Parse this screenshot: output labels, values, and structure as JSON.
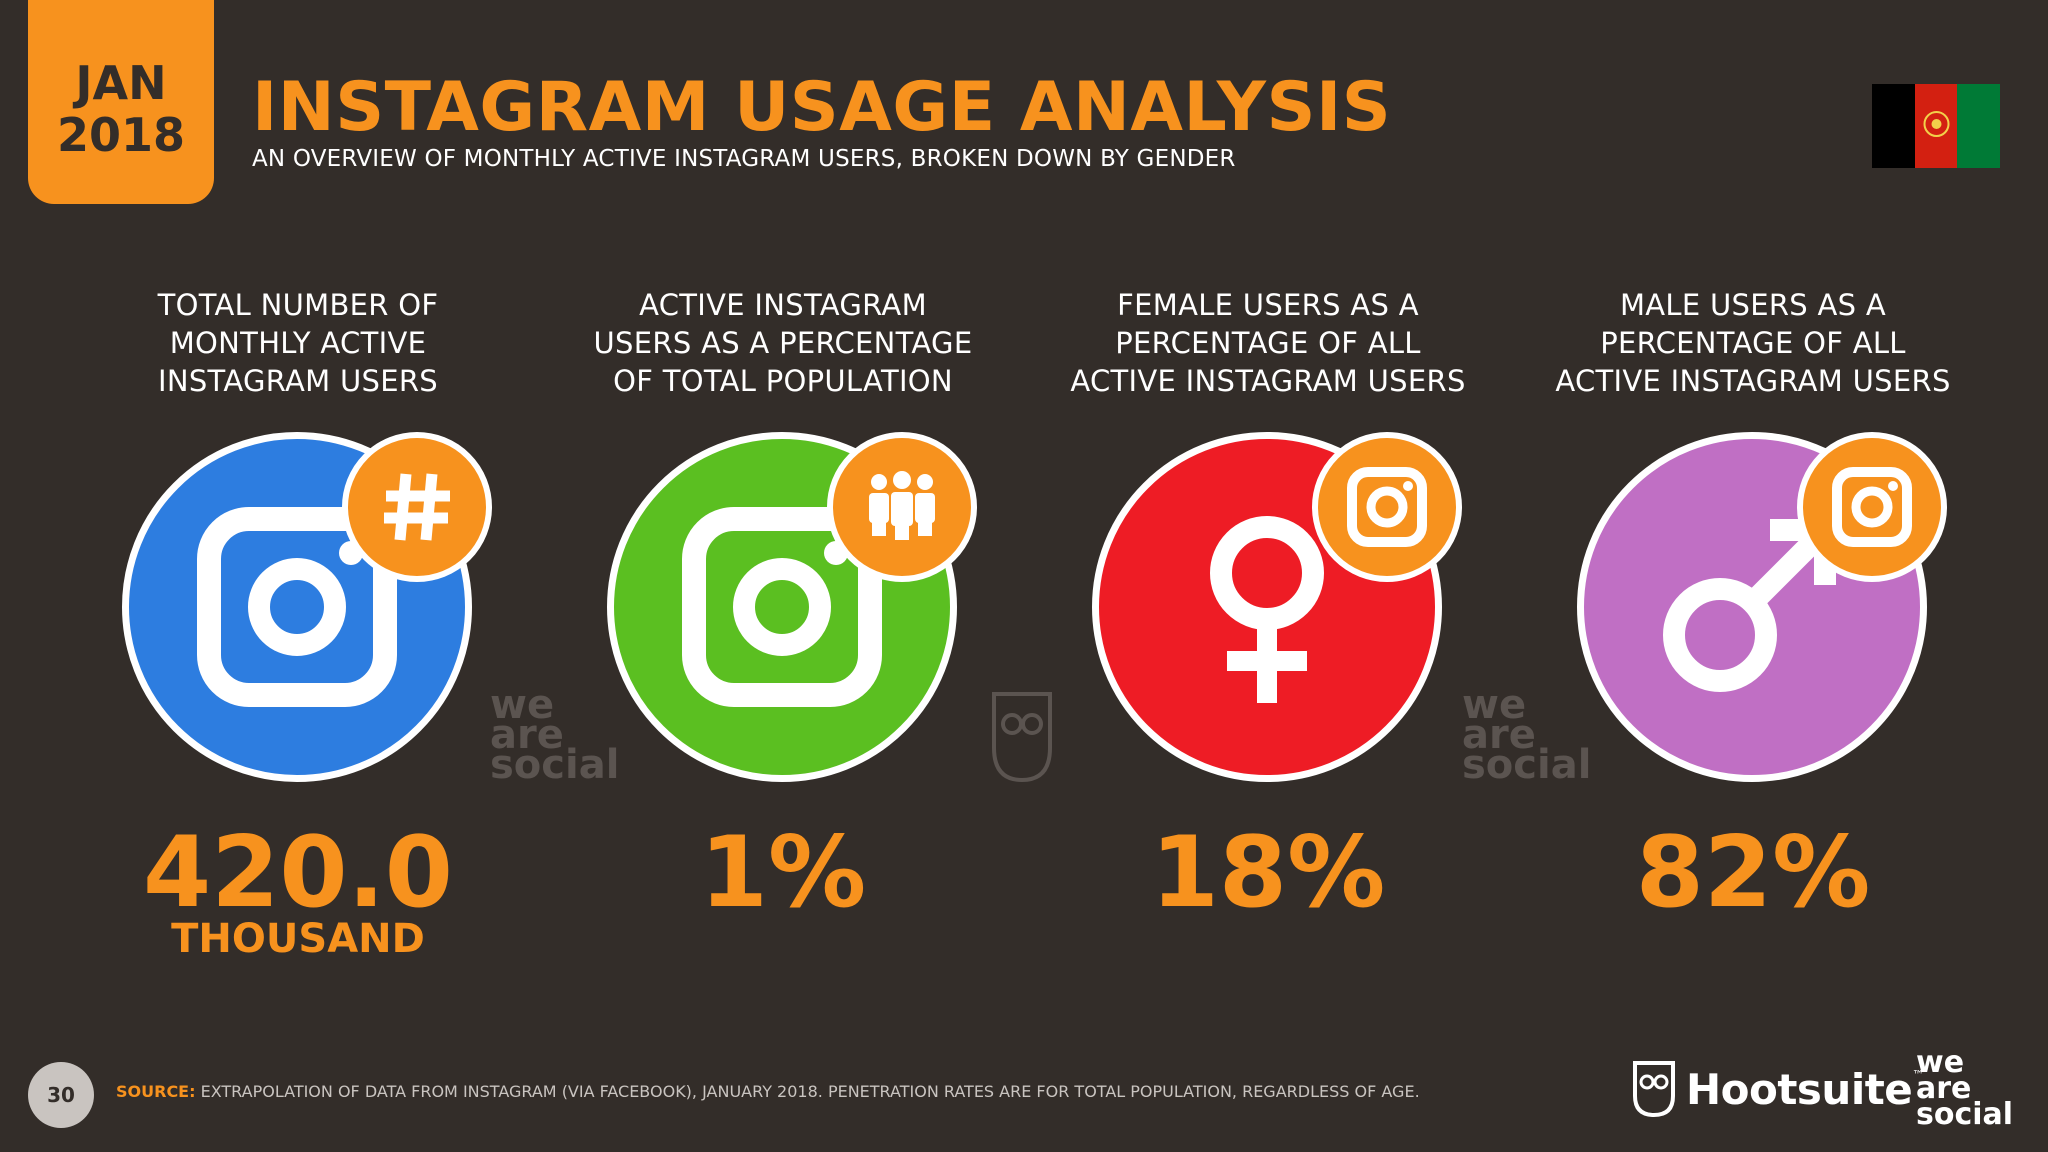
{
  "header": {
    "date_month": "JAN",
    "date_year": "2018",
    "title": "INSTAGRAM USAGE ANALYSIS",
    "subtitle": "AN OVERVIEW OF MONTHLY ACTIVE INSTAGRAM USERS, BROKEN DOWN BY GENDER",
    "flag_colors": [
      "#000000",
      "#d32011",
      "#007a36"
    ]
  },
  "stats": [
    {
      "label_lines": [
        "TOTAL NUMBER OF",
        "MONTHLY ACTIVE",
        "INSTAGRAM USERS"
      ],
      "value": "420.0",
      "value_sub": "THOUSAND",
      "circle_color": "#2d7de0",
      "icon": "instagram-icon",
      "badge_icon": "hashtag-icon"
    },
    {
      "label_lines": [
        "ACTIVE INSTAGRAM",
        "USERS AS A PERCENTAGE",
        "OF TOTAL POPULATION"
      ],
      "value": "1%",
      "value_sub": "",
      "circle_color": "#5bbf21",
      "icon": "instagram-icon",
      "badge_icon": "people-icon"
    },
    {
      "label_lines": [
        "FEMALE USERS AS A",
        "PERCENTAGE OF ALL",
        "ACTIVE INSTAGRAM USERS"
      ],
      "value": "18%",
      "value_sub": "",
      "circle_color": "#ee1c25",
      "icon": "female-symbol-icon",
      "badge_icon": "instagram-icon"
    },
    {
      "label_lines": [
        "MALE USERS AS A",
        "PERCENTAGE OF ALL",
        "ACTIVE INSTAGRAM USERS"
      ],
      "value": "82%",
      "value_sub": "",
      "circle_color": "#c06fc4",
      "icon": "male-symbol-icon",
      "badge_icon": "instagram-icon"
    }
  ],
  "watermarks": [
    "we",
    "are",
    "social"
  ],
  "footer": {
    "page_number": "30",
    "source_label": "SOURCE:",
    "source_text": "EXTRAPOLATION OF DATA FROM INSTAGRAM (VIA FACEBOOK), JANUARY 2018. PENETRATION RATES ARE FOR TOTAL POPULATION, REGARDLESS OF AGE.",
    "brand": "Hootsuite",
    "brand_tm": "™",
    "partner_lines": [
      "we",
      "are",
      "social"
    ]
  },
  "colors": {
    "accent": "#f7921e",
    "background": "#332d29"
  }
}
